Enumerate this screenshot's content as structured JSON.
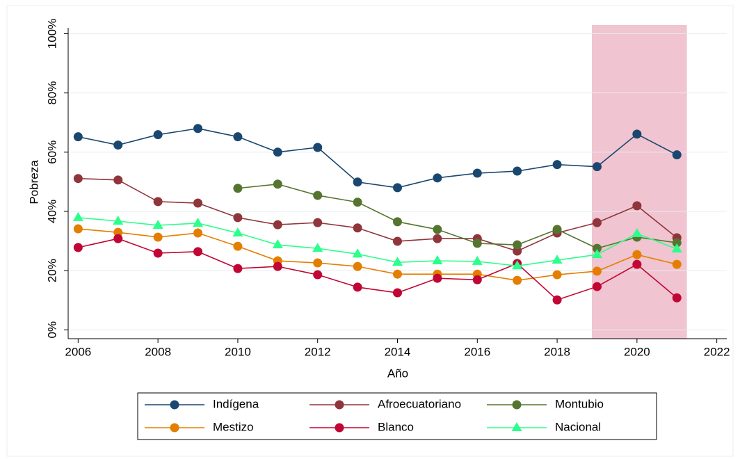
{
  "chart_data": {
    "type": "line",
    "y_label": "Pobreza",
    "x_label": "Año",
    "x": [
      2006,
      2007,
      2008,
      2009,
      2010,
      2011,
      2012,
      2013,
      2014,
      2015,
      2016,
      2017,
      2018,
      2019,
      2020,
      2021
    ],
    "series": [
      {
        "name": "Indígena",
        "color": "#1a476f",
        "marker": "circle",
        "values": [
          65.2,
          62.4,
          65.9,
          68,
          65.2,
          60,
          61.6,
          49.9,
          48,
          51.3,
          52.9,
          53.6,
          55.8,
          55.1,
          66.1,
          59.1
        ]
      },
      {
        "name": "Afroecuatoriano",
        "color": "#90353b",
        "marker": "circle",
        "values": [
          51.1,
          50.6,
          43.3,
          42.8,
          37.9,
          35.5,
          36.2,
          34.4,
          29.9,
          30.8,
          30.8,
          26.6,
          32.7,
          36.2,
          41.9,
          31.1
        ]
      },
      {
        "name": "Montubio",
        "color": "#55752f",
        "marker": "circle",
        "values": [
          null,
          null,
          null,
          null,
          47.8,
          49.2,
          45.4,
          43.1,
          36.5,
          33.9,
          29.2,
          28.7,
          33.9,
          27.5,
          31.3,
          29.4
        ]
      },
      {
        "name": "Mestizo",
        "color": "#e37e00",
        "marker": "circle",
        "values": [
          34.1,
          32.9,
          31.3,
          32.7,
          28.2,
          23.3,
          22.6,
          21.4,
          18.8,
          18.8,
          18.8,
          16.7,
          18.6,
          19.8,
          25.4,
          22.1
        ]
      },
      {
        "name": "Blanco",
        "color": "#c10534",
        "marker": "circle",
        "values": [
          27.8,
          30.8,
          25.9,
          26.4,
          20.7,
          21.4,
          18.6,
          14.4,
          12.5,
          17.4,
          16.9,
          22.4,
          10.1,
          14.6,
          22.1,
          10.8
        ]
      },
      {
        "name": "Nacional",
        "color": "#2bff8c",
        "marker": "triangle",
        "values": [
          37.9,
          36.7,
          35.3,
          36,
          32.7,
          28.7,
          27.5,
          25.6,
          22.8,
          23.3,
          23.1,
          21.6,
          23.5,
          25.4,
          32.5,
          27.3
        ]
      }
    ],
    "shaded_range": [
      2018.87,
      2021.25
    ],
    "shade_color": "#f0c4d0",
    "xlim": [
      2005.75,
      2022.25
    ],
    "ylim": [
      -3,
      102
    ],
    "xticks": [
      2006,
      2008,
      2010,
      2012,
      2014,
      2016,
      2018,
      2020,
      2022
    ],
    "yticks": [
      {
        "value": 0,
        "label": "0%"
      },
      {
        "value": 20,
        "label": "20%"
      },
      {
        "value": 40,
        "label": "40%"
      },
      {
        "value": 60,
        "label": "60%"
      },
      {
        "value": 80,
        "label": "80%"
      },
      {
        "value": 100,
        "label": "100%"
      }
    ],
    "grid": true
  }
}
